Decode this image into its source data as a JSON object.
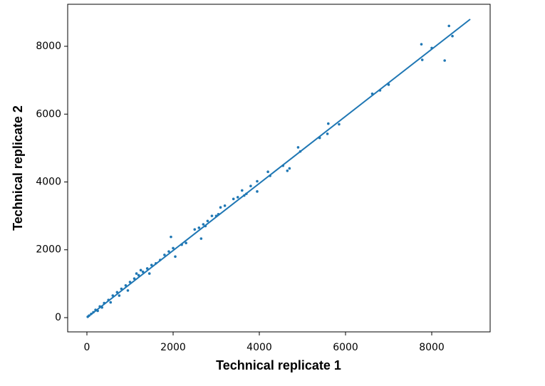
{
  "chart_data": {
    "type": "scatter",
    "x_label": "Technical replicate 1",
    "y_label": "Technical replicate 2",
    "color": "#1f77b4",
    "xlim": [
      -446,
      9355
    ],
    "ylim": [
      -420,
      9239
    ],
    "xticks": [
      0,
      2000,
      4000,
      6000,
      8000
    ],
    "yticks": [
      0,
      2000,
      4000,
      6000,
      8000
    ],
    "points": {
      "x": [
        7760,
        7780,
        8000,
        8300,
        8400,
        8480,
        6620,
        6800,
        7000,
        5600,
        5580,
        5850,
        4900,
        4950,
        5400,
        4700,
        4550,
        4650,
        4200,
        4250,
        3950,
        3950,
        3800,
        3600,
        3650,
        3700,
        3500,
        3400,
        3200,
        3100,
        3000,
        2900,
        2800,
        2700,
        2650,
        2600,
        2500,
        1950,
        2000,
        1900,
        2050,
        1800,
        1700,
        1600,
        1500,
        1400,
        1300,
        1200,
        1100,
        1000,
        900,
        800,
        700,
        600,
        500,
        400,
        300,
        200,
        150,
        100,
        50,
        20,
        2300,
        2200,
        1250,
        950,
        750,
        550,
        350,
        250,
        1150,
        1450,
        3050,
        2750
      ],
      "y": [
        8060,
        7600,
        7950,
        7580,
        8600,
        8300,
        6600,
        6700,
        6870,
        5720,
        5420,
        5700,
        5020,
        4900,
        5300,
        4400,
        4480,
        4330,
        4300,
        4180,
        4020,
        3720,
        3880,
        3750,
        3600,
        3650,
        3550,
        3500,
        3300,
        3250,
        3000,
        3000,
        2850,
        2750,
        2330,
        2650,
        2600,
        2380,
        2050,
        1950,
        1800,
        1850,
        1700,
        1600,
        1550,
        1450,
        1350,
        1250,
        1150,
        1050,
        950,
        850,
        750,
        650,
        520,
        430,
        330,
        230,
        160,
        110,
        60,
        25,
        2200,
        2150,
        1400,
        800,
        650,
        450,
        300,
        200,
        1300,
        1300,
        3050,
        2700
      ]
    },
    "line": {
      "x": [
        0,
        8893
      ],
      "y": [
        0,
        8798
      ]
    }
  }
}
